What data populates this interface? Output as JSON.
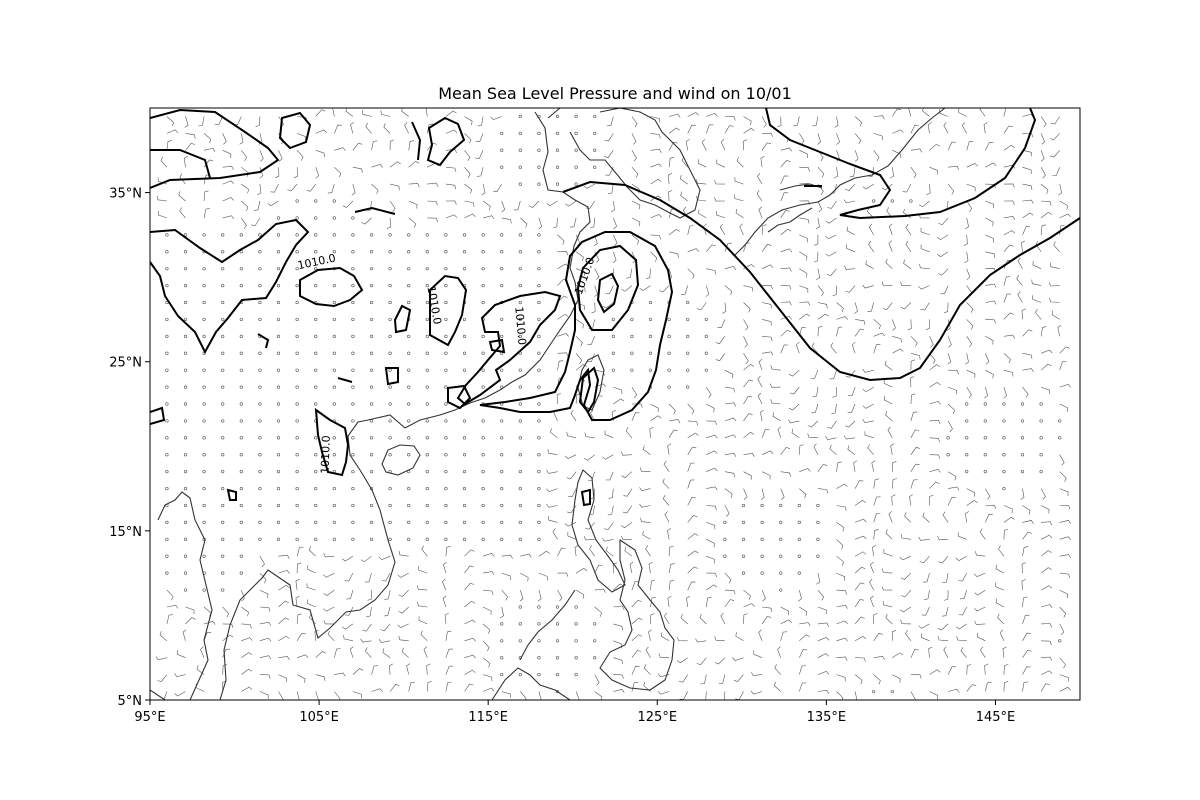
{
  "title": "Mean Sea Level Pressure and wind on 10/01",
  "axes": {
    "x_ticks": [
      "95°E",
      "105°E",
      "115°E",
      "125°E",
      "135°E",
      "145°E"
    ],
    "y_ticks": [
      "35°N",
      "25°N",
      "15°N",
      "5°N"
    ]
  },
  "map_extent": {
    "lon": [
      95,
      150
    ],
    "lat": [
      5,
      40
    ]
  },
  "contour_level_label": "1010.0",
  "contour_labels": [
    {
      "text": "1010.0",
      "lon": 104.9,
      "lat": 30.7,
      "rotate": -12
    },
    {
      "text": "1010.0",
      "lon": 111.6,
      "lat": 28.3,
      "rotate": 80
    },
    {
      "text": "1010.0",
      "lon": 116.7,
      "lat": 27.1,
      "rotate": 85
    },
    {
      "text": "1010.0",
      "lon": 105.6,
      "lat": 19.5,
      "rotate": -88
    },
    {
      "text": "1010.0",
      "lon": 120.9,
      "lat": 30.0,
      "rotate": -70
    }
  ],
  "colors": {
    "coastline": "#333333",
    "contour": "#000000",
    "barb": "#555555"
  }
}
